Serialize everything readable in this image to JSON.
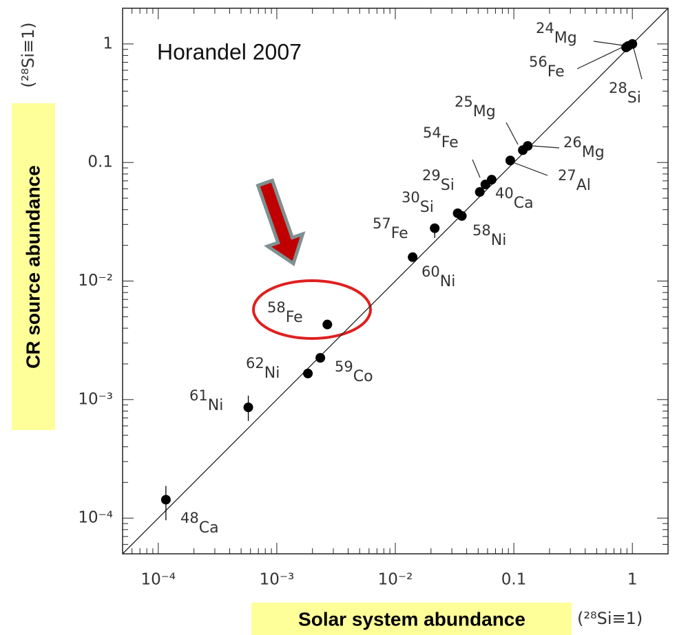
{
  "chart_data": {
    "type": "scatter",
    "annotation": "Horandel 2007",
    "x_label": "Solar system abundance",
    "y_label": "CR source abundance",
    "x_unit": "(²⁸Si≡1)",
    "y_unit": "(²⁸Si≡1)",
    "log_x": true,
    "log_y": true,
    "minor_ticks": true,
    "reference_line": "y=x",
    "xlim": [
      5e-05,
      2
    ],
    "ylim": [
      5e-05,
      2
    ],
    "xticks": [
      {
        "value": 0.0001,
        "label": "10⁻⁴"
      },
      {
        "value": 0.001,
        "label": "10⁻³"
      },
      {
        "value": 0.01,
        "label": "10⁻²"
      },
      0.1,
      1
    ],
    "yticks": [
      {
        "value": 0.0001,
        "label": "10⁻⁴"
      },
      {
        "value": 0.001,
        "label": "10⁻³"
      },
      {
        "value": 0.01,
        "label": "10⁻²"
      },
      0.1,
      1
    ],
    "color": "#000000",
    "points": [
      {
        "mass": "48",
        "element": "Ca",
        "x": 0.000116,
        "y": 0.000143,
        "y_low": 9.6e-05,
        "y_high": 0.000187
      },
      {
        "mass": "61",
        "element": "Ni",
        "x": 0.000575,
        "y": 0.00086,
        "y_low": 0.00066,
        "y_high": 0.00108
      },
      {
        "mass": "62",
        "element": "Ni",
        "x": 0.00183,
        "y": 0.00166
      },
      {
        "mass": "59",
        "element": "Co",
        "x": 0.00233,
        "y": 0.00225
      },
      {
        "mass": "58",
        "element": "Fe",
        "x": 0.00267,
        "y": 0.0043
      },
      {
        "mass": "60",
        "element": "Ni",
        "x": 0.014,
        "y": 0.0159
      },
      {
        "mass": "57",
        "element": "Fe",
        "x": 0.0215,
        "y": 0.0279,
        "y_low": 0.0231,
        "y_high": 0.03
      },
      {
        "mass": "30",
        "element": "Si",
        "x": 0.0336,
        "y": 0.0373
      },
      {
        "mass": "58",
        "element": "Ni",
        "x": 0.0364,
        "y": 0.0354
      },
      {
        "mass": "29",
        "element": "Si",
        "x": 0.0516,
        "y": 0.0564
      },
      {
        "mass": "54",
        "element": "Fe",
        "x": 0.0575,
        "y": 0.0653
      },
      {
        "mass": "40",
        "element": "Ca",
        "x": 0.065,
        "y": 0.0716
      },
      {
        "mass": "27",
        "element": "Al",
        "x": 0.0933,
        "y": 0.104
      },
      {
        "mass": "25",
        "element": "Mg",
        "x": 0.119,
        "y": 0.127
      },
      {
        "mass": "26",
        "element": "Mg",
        "x": 0.131,
        "y": 0.138
      },
      {
        "mass": "24",
        "element": "Mg",
        "x": 0.885,
        "y": 0.935
      },
      {
        "mass": "56",
        "element": "Fe",
        "x": 0.92,
        "y": 0.96
      },
      {
        "mass": "28",
        "element": "Si",
        "x": 1.0,
        "y": 1.0
      }
    ]
  }
}
